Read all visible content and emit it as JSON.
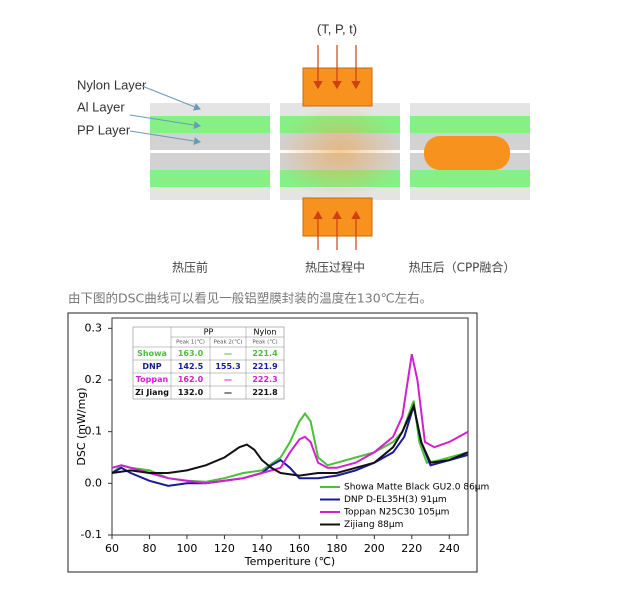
{
  "diagram": {
    "parameters": "(T, P, t)",
    "layers": [
      "Nylon Layer",
      "Al Layer",
      "PP Layer"
    ],
    "stages": [
      "热压前",
      "热压过程中",
      "热压后（CPP融合）"
    ]
  },
  "caption": "由下图的DSC曲线可以看见一般铝塑膜封装的温度在130℃左右。",
  "chart_data": {
    "type": "line",
    "x_label": "Temperiture (℃)",
    "y_label": "DSC (mW/mg)",
    "xlim": [
      60,
      250
    ],
    "ylim": [
      -0.1,
      0.32
    ],
    "xticks": [
      60,
      80,
      100,
      120,
      140,
      160,
      180,
      200,
      220,
      240
    ],
    "yticks": [
      -0.1,
      {
        "value": 0,
        "label": "0.0"
      },
      0.1,
      0.2,
      0.3
    ],
    "legend": "lower right",
    "series": [
      {
        "name": "Showa Matte Black GU2.0 86μm",
        "color": "#4cbf3a",
        "x": [
          60,
          65,
          70,
          80,
          90,
          100,
          110,
          120,
          130,
          140,
          150,
          155,
          160,
          163,
          166,
          170,
          175,
          180,
          190,
          200,
          210,
          215,
          221,
          224,
          228,
          235,
          250
        ],
        "values": [
          0.02,
          0.035,
          0.03,
          0.025,
          0.01,
          0.005,
          0.003,
          0.01,
          0.02,
          0.025,
          0.05,
          0.08,
          0.12,
          0.135,
          0.12,
          0.05,
          0.035,
          0.04,
          0.05,
          0.06,
          0.08,
          0.1,
          0.16,
          0.08,
          0.04,
          0.045,
          0.06
        ]
      },
      {
        "name": "DNP D-EL35H(3) 91μm",
        "color": "#1a1a9a",
        "x": [
          60,
          65,
          70,
          80,
          90,
          100,
          110,
          120,
          130,
          140,
          145,
          150,
          155,
          160,
          170,
          180,
          190,
          200,
          210,
          216,
          221,
          225,
          230,
          240,
          250
        ],
        "values": [
          0.02,
          0.03,
          0.02,
          0.005,
          -0.005,
          0.0,
          0.0,
          0.005,
          0.01,
          0.02,
          0.035,
          0.045,
          0.03,
          0.01,
          0.01,
          0.015,
          0.025,
          0.04,
          0.06,
          0.09,
          0.15,
          0.08,
          0.035,
          0.045,
          0.055
        ]
      },
      {
        "name": "Toppan N25C30 105μm",
        "color": "#d21fd2",
        "x": [
          60,
          65,
          70,
          80,
          90,
          100,
          110,
          120,
          130,
          140,
          150,
          155,
          160,
          163,
          166,
          170,
          175,
          180,
          190,
          200,
          210,
          215,
          220,
          223,
          227,
          232,
          240,
          250
        ],
        "values": [
          0.03,
          0.035,
          0.03,
          0.02,
          0.01,
          0.005,
          0.0,
          0.005,
          0.01,
          0.02,
          0.03,
          0.06,
          0.085,
          0.09,
          0.08,
          0.04,
          0.03,
          0.03,
          0.04,
          0.06,
          0.09,
          0.13,
          0.25,
          0.2,
          0.08,
          0.07,
          0.08,
          0.1
        ]
      },
      {
        "name": "Zijiang 88μm",
        "color": "#111111",
        "x": [
          60,
          70,
          80,
          90,
          100,
          110,
          120,
          128,
          132,
          136,
          140,
          145,
          150,
          160,
          170,
          180,
          190,
          200,
          210,
          215,
          221,
          225,
          230,
          240,
          250
        ],
        "values": [
          0.02,
          0.025,
          0.02,
          0.02,
          0.025,
          0.035,
          0.05,
          0.07,
          0.075,
          0.065,
          0.045,
          0.03,
          0.02,
          0.015,
          0.02,
          0.02,
          0.03,
          0.04,
          0.07,
          0.1,
          0.15,
          0.08,
          0.04,
          0.045,
          0.06
        ]
      }
    ],
    "table": {
      "groups": [
        "PP",
        "Nylon"
      ],
      "columns": [
        "Peak 1(℃)",
        "Peak 2(℃)",
        "Peak (℃)"
      ],
      "rows": [
        [
          "Showa",
          "163.0",
          "—",
          "221.4"
        ],
        [
          "DNP",
          "142.5",
          "155.3",
          "221.9"
        ],
        [
          "Toppan",
          "162.0",
          "—",
          "222.3"
        ],
        [
          "Zi Jiang",
          "132.0",
          "—",
          "221.8"
        ]
      ]
    }
  }
}
